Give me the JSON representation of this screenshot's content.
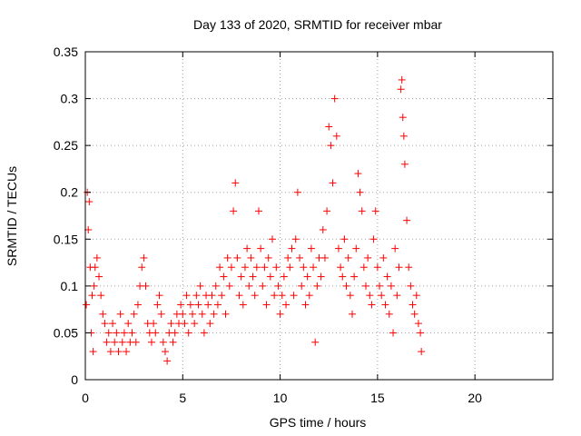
{
  "chart_data": {
    "type": "scatter",
    "title": "Day 133 of 2020, SRMTID for receiver mbar",
    "xlabel": "GPS time / hours",
    "ylabel": "SRMTID / TECUs",
    "xlim": [
      0,
      24
    ],
    "ylim": [
      0,
      0.35
    ],
    "xticks": [
      0,
      5,
      10,
      15,
      20
    ],
    "xtick_labels": [
      "0",
      "5",
      "10",
      "15",
      "20"
    ],
    "yticks": [
      0,
      0.05,
      0.1,
      0.15,
      0.2,
      0.25,
      0.3,
      0.35
    ],
    "ytick_labels": [
      "0",
      "0.05",
      "0.1",
      "0.15",
      "0.2",
      "0.25",
      "0.3",
      "0.35"
    ],
    "grid": true,
    "marker": "+",
    "series_color": "#ff0000",
    "x_coverage_hours": [
      0,
      17.3
    ],
    "series": [
      {
        "name": "SRMTID",
        "points": [
          [
            0.05,
            0.08
          ],
          [
            0.1,
            0.2
          ],
          [
            0.15,
            0.16
          ],
          [
            0.2,
            0.19
          ],
          [
            0.25,
            0.12
          ],
          [
            0.3,
            0.05
          ],
          [
            0.35,
            0.09
          ],
          [
            0.4,
            0.03
          ],
          [
            0.45,
            0.1
          ],
          [
            0.5,
            0.12
          ],
          [
            0.6,
            0.13
          ],
          [
            0.7,
            0.11
          ],
          [
            0.8,
            0.09
          ],
          [
            0.9,
            0.07
          ],
          [
            1.0,
            0.06
          ],
          [
            1.1,
            0.04
          ],
          [
            1.2,
            0.05
          ],
          [
            1.3,
            0.03
          ],
          [
            1.4,
            0.06
          ],
          [
            1.5,
            0.04
          ],
          [
            1.6,
            0.05
          ],
          [
            1.7,
            0.03
          ],
          [
            1.8,
            0.07
          ],
          [
            1.9,
            0.04
          ],
          [
            2.0,
            0.05
          ],
          [
            2.1,
            0.03
          ],
          [
            2.2,
            0.06
          ],
          [
            2.3,
            0.04
          ],
          [
            2.4,
            0.05
          ],
          [
            2.5,
            0.07
          ],
          [
            2.6,
            0.04
          ],
          [
            2.7,
            0.08
          ],
          [
            2.8,
            0.1
          ],
          [
            2.9,
            0.12
          ],
          [
            3.0,
            0.13
          ],
          [
            3.1,
            0.1
          ],
          [
            3.2,
            0.06
          ],
          [
            3.3,
            0.05
          ],
          [
            3.4,
            0.04
          ],
          [
            3.5,
            0.06
          ],
          [
            3.6,
            0.05
          ],
          [
            3.7,
            0.08
          ],
          [
            3.8,
            0.09
          ],
          [
            3.9,
            0.07
          ],
          [
            4.0,
            0.04
          ],
          [
            4.1,
            0.03
          ],
          [
            4.2,
            0.02
          ],
          [
            4.3,
            0.05
          ],
          [
            4.4,
            0.06
          ],
          [
            4.5,
            0.04
          ],
          [
            4.6,
            0.05
          ],
          [
            4.7,
            0.07
          ],
          [
            4.8,
            0.06
          ],
          [
            4.9,
            0.08
          ],
          [
            5.0,
            0.07
          ],
          [
            5.1,
            0.06
          ],
          [
            5.2,
            0.09
          ],
          [
            5.3,
            0.05
          ],
          [
            5.4,
            0.08
          ],
          [
            5.5,
            0.07
          ],
          [
            5.6,
            0.06
          ],
          [
            5.7,
            0.09
          ],
          [
            5.8,
            0.08
          ],
          [
            5.9,
            0.1
          ],
          [
            6.0,
            0.07
          ],
          [
            6.1,
            0.05
          ],
          [
            6.2,
            0.09
          ],
          [
            6.3,
            0.08
          ],
          [
            6.4,
            0.06
          ],
          [
            6.5,
            0.09
          ],
          [
            6.6,
            0.07
          ],
          [
            6.7,
            0.1
          ],
          [
            6.8,
            0.08
          ],
          [
            6.9,
            0.12
          ],
          [
            7.0,
            0.09
          ],
          [
            7.1,
            0.11
          ],
          [
            7.2,
            0.07
          ],
          [
            7.3,
            0.13
          ],
          [
            7.4,
            0.1
          ],
          [
            7.5,
            0.12
          ],
          [
            7.6,
            0.18
          ],
          [
            7.7,
            0.21
          ],
          [
            7.8,
            0.13
          ],
          [
            7.9,
            0.09
          ],
          [
            8.0,
            0.11
          ],
          [
            8.1,
            0.08
          ],
          [
            8.2,
            0.12
          ],
          [
            8.3,
            0.14
          ],
          [
            8.4,
            0.1
          ],
          [
            8.5,
            0.13
          ],
          [
            8.6,
            0.11
          ],
          [
            8.7,
            0.09
          ],
          [
            8.8,
            0.12
          ],
          [
            8.9,
            0.18
          ],
          [
            9.0,
            0.14
          ],
          [
            9.1,
            0.1
          ],
          [
            9.2,
            0.12
          ],
          [
            9.3,
            0.08
          ],
          [
            9.4,
            0.13
          ],
          [
            9.5,
            0.11
          ],
          [
            9.6,
            0.15
          ],
          [
            9.7,
            0.09
          ],
          [
            9.8,
            0.12
          ],
          [
            9.9,
            0.1
          ],
          [
            10.0,
            0.07
          ],
          [
            10.1,
            0.09
          ],
          [
            10.2,
            0.11
          ],
          [
            10.3,
            0.08
          ],
          [
            10.4,
            0.13
          ],
          [
            10.5,
            0.12
          ],
          [
            10.6,
            0.14
          ],
          [
            10.7,
            0.09
          ],
          [
            10.8,
            0.15
          ],
          [
            10.9,
            0.2
          ],
          [
            11.0,
            0.13
          ],
          [
            11.1,
            0.1
          ],
          [
            11.2,
            0.12
          ],
          [
            11.3,
            0.08
          ],
          [
            11.4,
            0.11
          ],
          [
            11.5,
            0.09
          ],
          [
            11.6,
            0.14
          ],
          [
            11.7,
            0.12
          ],
          [
            11.8,
            0.04
          ],
          [
            11.9,
            0.1
          ],
          [
            12.0,
            0.13
          ],
          [
            12.1,
            0.11
          ],
          [
            12.2,
            0.16
          ],
          [
            12.3,
            0.13
          ],
          [
            12.4,
            0.18
          ],
          [
            12.5,
            0.27
          ],
          [
            12.6,
            0.25
          ],
          [
            12.7,
            0.21
          ],
          [
            12.8,
            0.3
          ],
          [
            12.9,
            0.26
          ],
          [
            13.0,
            0.14
          ],
          [
            13.1,
            0.12
          ],
          [
            13.2,
            0.11
          ],
          [
            13.3,
            0.15
          ],
          [
            13.4,
            0.1
          ],
          [
            13.5,
            0.13
          ],
          [
            13.6,
            0.09
          ],
          [
            13.7,
            0.07
          ],
          [
            13.8,
            0.11
          ],
          [
            13.9,
            0.14
          ],
          [
            14.0,
            0.22
          ],
          [
            14.1,
            0.2
          ],
          [
            14.2,
            0.18
          ],
          [
            14.3,
            0.12
          ],
          [
            14.4,
            0.1
          ],
          [
            14.5,
            0.13
          ],
          [
            14.6,
            0.09
          ],
          [
            14.7,
            0.08
          ],
          [
            14.8,
            0.15
          ],
          [
            14.9,
            0.18
          ],
          [
            15.0,
            0.12
          ],
          [
            15.1,
            0.1
          ],
          [
            15.2,
            0.09
          ],
          [
            15.3,
            0.13
          ],
          [
            15.4,
            0.08
          ],
          [
            15.5,
            0.11
          ],
          [
            15.6,
            0.07
          ],
          [
            15.7,
            0.1
          ],
          [
            15.8,
            0.05
          ],
          [
            15.9,
            0.14
          ],
          [
            16.0,
            0.09
          ],
          [
            16.1,
            0.12
          ],
          [
            16.2,
            0.31
          ],
          [
            16.25,
            0.32
          ],
          [
            16.3,
            0.28
          ],
          [
            16.35,
            0.26
          ],
          [
            16.4,
            0.23
          ],
          [
            16.5,
            0.17
          ],
          [
            16.6,
            0.12
          ],
          [
            16.7,
            0.1
          ],
          [
            16.8,
            0.08
          ],
          [
            16.9,
            0.07
          ],
          [
            17.0,
            0.09
          ],
          [
            17.1,
            0.06
          ],
          [
            17.2,
            0.05
          ],
          [
            17.25,
            0.03
          ]
        ]
      }
    ]
  }
}
